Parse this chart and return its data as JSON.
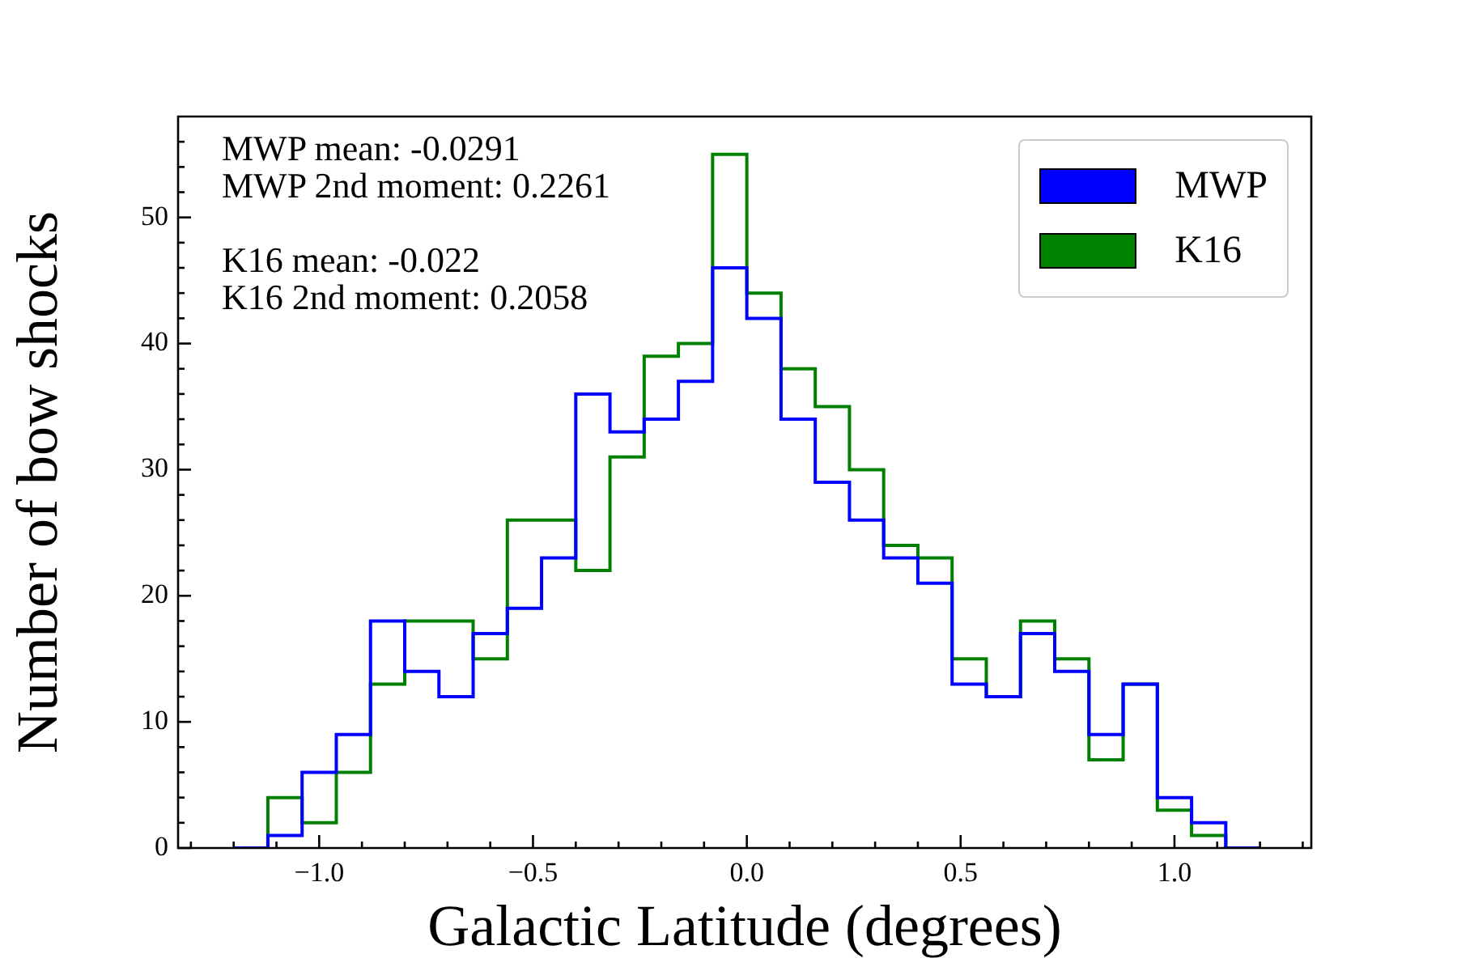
{
  "chart_data": {
    "type": "histogram",
    "xlabel": "Galactic Latitude (degrees)",
    "ylabel": "Number of bow shocks",
    "bins": [
      -1.2,
      -1.12,
      -1.04,
      -0.96,
      -0.88,
      -0.8,
      -0.72,
      -0.64,
      -0.56,
      -0.48,
      -0.4,
      -0.32,
      -0.24,
      -0.16,
      -0.08,
      0,
      0.08,
      0.16,
      0.24,
      0.32,
      0.4,
      0.48,
      0.56,
      0.64,
      0.72,
      0.8,
      0.88,
      0.96,
      1.04,
      1.12,
      1.2
    ],
    "series": [
      {
        "name": "MWP",
        "color": "#0000ff",
        "values": [
          0,
          1,
          6,
          9,
          18,
          14,
          12,
          17,
          19,
          23,
          36,
          33,
          34,
          37,
          46,
          42,
          34,
          29,
          26,
          23,
          21,
          13,
          12,
          17,
          14,
          9,
          13,
          4,
          2,
          0
        ]
      },
      {
        "name": "K16",
        "color": "#008000",
        "values": [
          0,
          4,
          2,
          6,
          13,
          18,
          18,
          15,
          26,
          26,
          22,
          31,
          39,
          40,
          55,
          44,
          38,
          35,
          30,
          24,
          23,
          15,
          12,
          18,
          15,
          7,
          13,
          3,
          1,
          0
        ]
      }
    ],
    "xlim": [
      -1.33,
      1.32
    ],
    "ylim": [
      0,
      58
    ],
    "xticks": [
      {
        "value": -1.3,
        "label": null
      },
      {
        "value": -1.2,
        "label": null
      },
      {
        "value": -1.1,
        "label": null
      },
      {
        "value": -1.0,
        "label": "−1.0"
      },
      {
        "value": -0.9,
        "label": null
      },
      {
        "value": -0.8,
        "label": null
      },
      {
        "value": -0.7,
        "label": null
      },
      {
        "value": -0.6,
        "label": null
      },
      {
        "value": -0.5,
        "label": "−0.5"
      },
      {
        "value": -0.4,
        "label": null
      },
      {
        "value": -0.3,
        "label": null
      },
      {
        "value": -0.2,
        "label": null
      },
      {
        "value": -0.1,
        "label": null
      },
      {
        "value": 0,
        "label": "0.0"
      },
      {
        "value": 0.1,
        "label": null
      },
      {
        "value": 0.2,
        "label": null
      },
      {
        "value": 0.3,
        "label": null
      },
      {
        "value": 0.4,
        "label": null
      },
      {
        "value": 0.5,
        "label": "0.5"
      },
      {
        "value": 0.6,
        "label": null
      },
      {
        "value": 0.7,
        "label": null
      },
      {
        "value": 0.8,
        "label": null
      },
      {
        "value": 0.9,
        "label": null
      },
      {
        "value": 1.0,
        "label": "1.0"
      },
      {
        "value": 1.1,
        "label": null
      },
      {
        "value": 1.2,
        "label": null
      },
      {
        "value": 1.3,
        "label": null
      }
    ],
    "yticks": [
      0,
      {
        "value": 2,
        "label": null
      },
      {
        "value": 4,
        "label": null
      },
      {
        "value": 6,
        "label": null
      },
      {
        "value": 8,
        "label": null
      },
      10,
      {
        "value": 12,
        "label": null
      },
      {
        "value": 14,
        "label": null
      },
      {
        "value": 16,
        "label": null
      },
      {
        "value": 18,
        "label": null
      },
      20,
      {
        "value": 22,
        "label": null
      },
      {
        "value": 24,
        "label": null
      },
      {
        "value": 26,
        "label": null
      },
      {
        "value": 28,
        "label": null
      },
      30,
      {
        "value": 32,
        "label": null
      },
      {
        "value": 34,
        "label": null
      },
      {
        "value": 36,
        "label": null
      },
      {
        "value": 38,
        "label": null
      },
      40,
      {
        "value": 42,
        "label": null
      },
      {
        "value": 44,
        "label": null
      },
      {
        "value": 46,
        "label": null
      },
      {
        "value": 48,
        "label": null
      },
      50,
      {
        "value": 52,
        "label": null
      },
      {
        "value": 54,
        "label": null
      },
      {
        "value": 56,
        "label": null
      }
    ],
    "legend": "top right",
    "annotations": [
      "MWP mean: -0.0291",
      "MWP 2nd moment: 0.2261",
      "K16 mean: -0.022",
      "K16 2nd moment: 0.2058"
    ]
  }
}
